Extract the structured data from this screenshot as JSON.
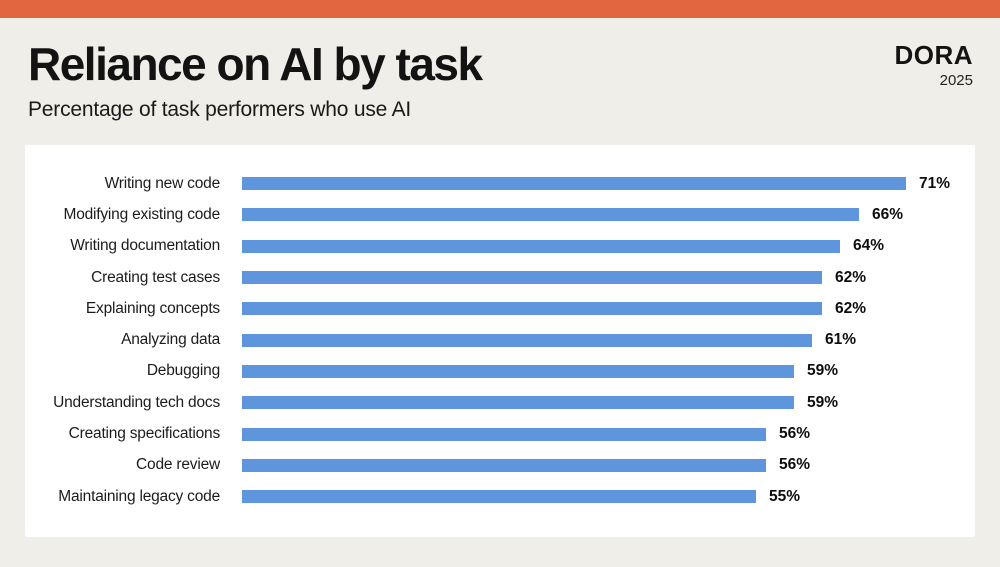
{
  "page": {
    "top_bar_color": "#e2663e",
    "background_color": "#f0eee8",
    "card_color": "#ffffff"
  },
  "header": {
    "title": "Reliance on AI by task",
    "subtitle": "Percentage of task performers who use AI"
  },
  "logo": {
    "brand": "DORA",
    "year": "2025"
  },
  "chart_data": {
    "type": "bar",
    "orientation": "horizontal",
    "title": "Reliance on AI by task",
    "subtitle": "Percentage of task performers who use AI",
    "categories": [
      "Writing new code",
      "Modifying existing code",
      "Writing documentation",
      "Creating test cases",
      "Explaining concepts",
      "Analyzing data",
      "Debugging",
      "Understanding tech docs",
      "Creating specifications",
      "Code review",
      "Maintaining legacy code"
    ],
    "values": [
      71,
      66,
      64,
      62,
      62,
      61,
      59,
      59,
      56,
      56,
      55
    ],
    "value_suffix": "%",
    "bar_color": "#5f95dc",
    "xlim": [
      0,
      100
    ],
    "grid": false,
    "legend": false,
    "value_labels": "end-of-bar"
  }
}
